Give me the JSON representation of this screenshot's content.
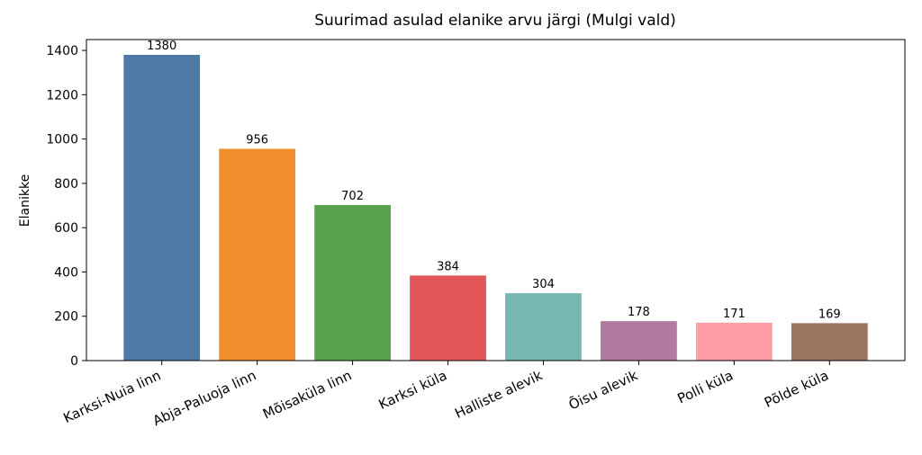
{
  "chart_data": {
    "type": "bar",
    "title": "Suurimad asulad elanike arvu järgi (Mulgi vald)",
    "ylabel": "Elanikke",
    "categories": [
      "Karksi-Nuia linn",
      "Abja-Paluoja linn",
      "Mõisaküla linn",
      "Karksi küla",
      "Halliste alevik",
      "Õisu alevik",
      "Polli küla",
      "Põlde küla"
    ],
    "values": [
      1380,
      956,
      702,
      384,
      304,
      178,
      171,
      169
    ],
    "colors": [
      "#4e79a7",
      "#f28e2b",
      "#59a14f",
      "#e15759",
      "#76b7b2",
      "#b07aa1",
      "#ff9da7",
      "#9c755f"
    ],
    "ylim": [
      0,
      1449
    ],
    "yticks": [
      0,
      200,
      400,
      600,
      800,
      1000,
      1200,
      1400
    ],
    "grid": false
  }
}
